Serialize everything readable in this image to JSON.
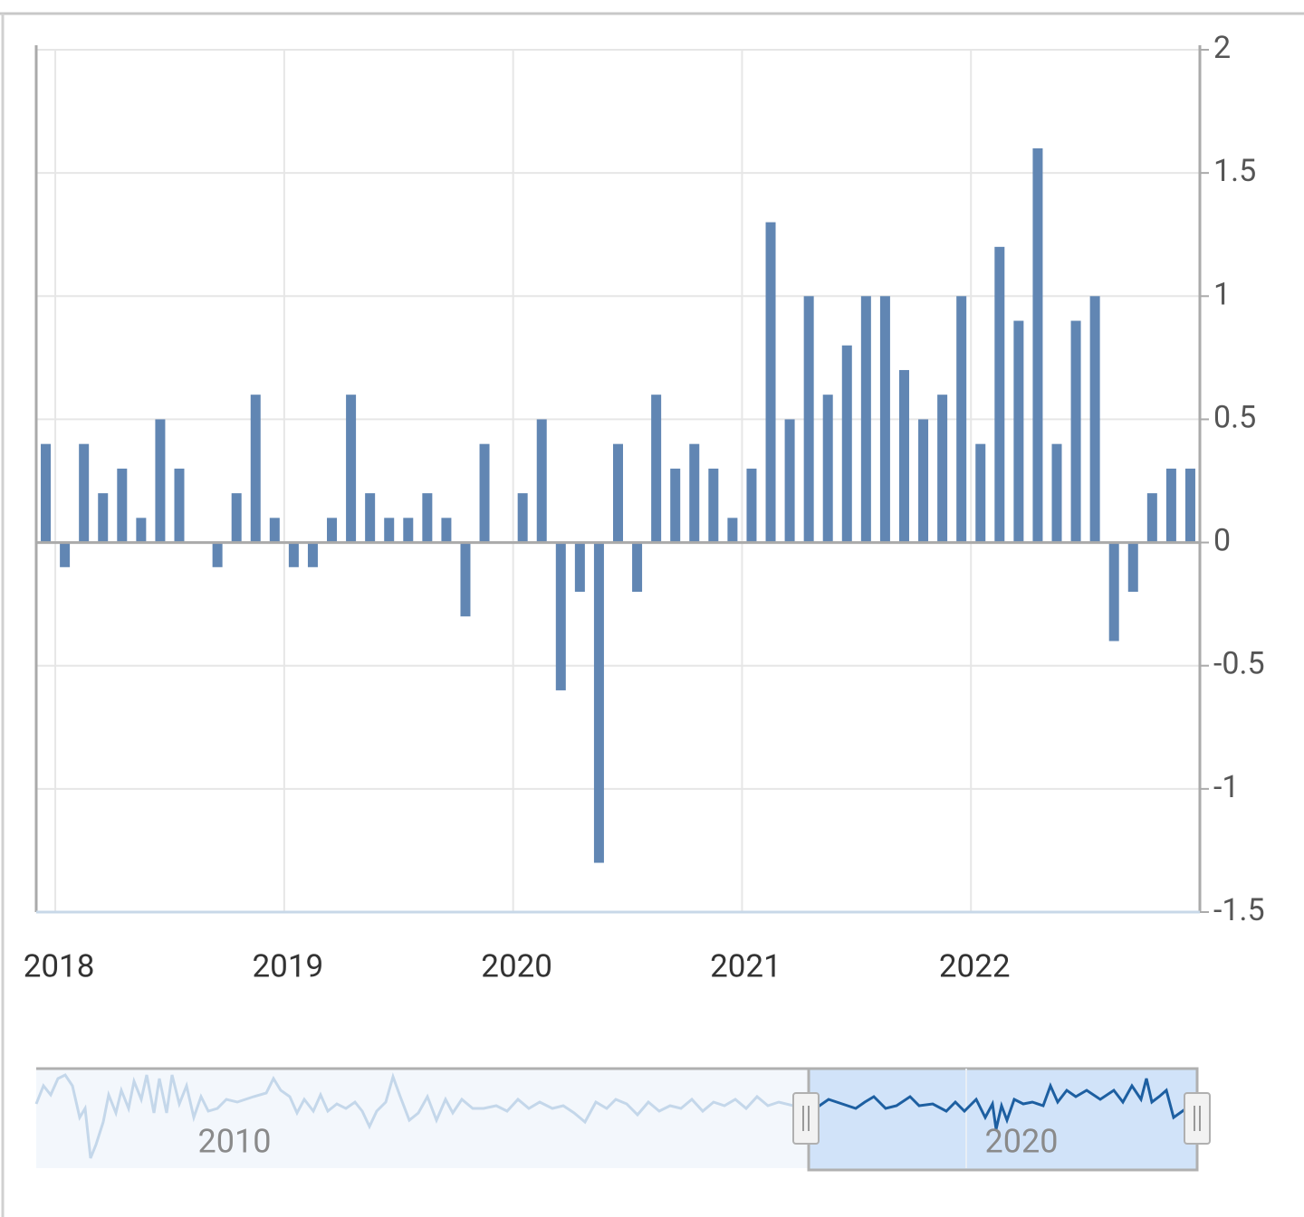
{
  "chart_data": {
    "type": "bar",
    "categories": [
      null,
      "2018",
      null,
      null,
      null,
      null,
      null,
      null,
      null,
      null,
      null,
      null,
      null,
      "2019",
      null,
      null,
      null,
      null,
      null,
      null,
      null,
      null,
      null,
      null,
      null,
      "2020",
      null,
      null,
      null,
      null,
      null,
      null,
      null,
      null,
      null,
      null,
      null,
      "2021",
      null,
      null,
      null,
      null,
      null,
      null,
      null,
      null,
      null,
      null,
      null,
      "2022",
      null,
      null,
      null,
      null,
      null,
      null,
      null,
      null,
      null,
      null,
      null
    ],
    "values": [
      0.4,
      -0.1,
      0.4,
      0.2,
      0.3,
      0.1,
      0.5,
      0.3,
      0,
      -0.1,
      0.2,
      0.6,
      0.1,
      -0.1,
      -0.1,
      0.1,
      0.6,
      0.2,
      0.1,
      0.1,
      0.2,
      0.1,
      -0.3,
      0.4,
      0,
      0.2,
      0.5,
      -0.6,
      -0.2,
      -1.3,
      0.4,
      -0.2,
      0.6,
      0.3,
      0.4,
      0.3,
      0.1,
      0.3,
      1.3,
      0.5,
      1.0,
      0.6,
      0.8,
      1.0,
      1.0,
      0.7,
      0.5,
      0.6,
      1.0,
      0.4,
      1.2,
      0.9,
      1.6,
      0.4,
      0.9,
      1.0,
      -0.4,
      -0.2,
      0.2,
      0.3,
      0.3
    ],
    "color": "#6186b3",
    "ylim": [
      -1.5,
      2
    ],
    "yticks": [
      -1.5,
      -1,
      -0.5,
      0,
      0.5,
      1,
      1.5,
      2
    ],
    "grid": true,
    "navigator_labels": [
      "2010",
      "2020"
    ]
  }
}
